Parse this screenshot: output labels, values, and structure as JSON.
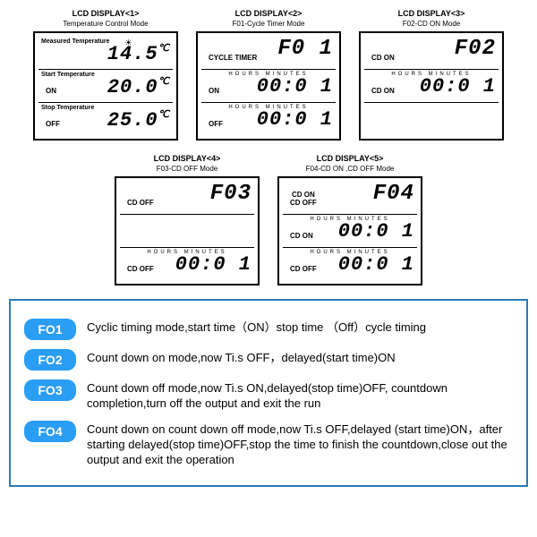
{
  "displays": [
    {
      "title": "LCD DISPLAY<1>",
      "sub": "Temperature Control Mode",
      "sections": [
        {
          "label": "Measured Temperature",
          "sun": true,
          "value": "14.5",
          "unit": "℃"
        },
        {
          "label": "Start Temperature",
          "state": "ON",
          "value": "20.0",
          "unit": "℃"
        },
        {
          "label": "Stop Temperature",
          "state": "OFF",
          "value": "25.0",
          "unit": "℃"
        }
      ]
    },
    {
      "title": "LCD DISPLAY<2>",
      "sub": "F01-Cycle Timer Mode",
      "sections": [
        {
          "label": "",
          "state": "CYCLE TIMER",
          "value": "F0 1",
          "big": true
        },
        {
          "hm": "HOURS   MINUTES",
          "state": "ON",
          "value": "00:0 1"
        },
        {
          "hm": "HOURS   MINUTES",
          "state": "OFF",
          "value": "00:0 1"
        }
      ]
    },
    {
      "title": "LCD DISPLAY<3>",
      "sub": "F02-CD ON Mode",
      "sections": [
        {
          "label": "",
          "state": "CD ON",
          "value": "F02",
          "big": true
        },
        {
          "hm": "HOURS   MINUTES",
          "state": "CD ON",
          "value": "00:0 1"
        },
        {
          "label": "",
          "value": ""
        }
      ]
    },
    {
      "title": "LCD DISPLAY<4>",
      "sub": "F03-CD OFF Mode",
      "sections": [
        {
          "label": "",
          "state": "CD OFF",
          "value": "F03",
          "big": true
        },
        {
          "label": "",
          "value": ""
        },
        {
          "hm": "HOURS   MINUTES",
          "state": "CD OFF",
          "value": "00:0 1"
        }
      ]
    },
    {
      "title": "LCD DISPLAY<5>",
      "sub": "F04-CD ON ,CD OFF Mode",
      "sections": [
        {
          "label": "",
          "state": "CD ON\nCD OFF",
          "value": "F04",
          "big": true
        },
        {
          "hm": "HOURS   MINUTES",
          "state": "CD ON",
          "value": "00:0 1"
        },
        {
          "hm": "HOURS   MINUTES",
          "state": "CD OFF",
          "value": "00:0 1"
        }
      ]
    }
  ],
  "legend": [
    {
      "badge": "FO1",
      "text": "Cyclic timing mode,start time（ON）stop time （Off）cycle timing"
    },
    {
      "badge": "FO2",
      "text": "Count down on mode,now Ti.s OFF，delayed(start time)ON"
    },
    {
      "badge": "FO3",
      "text": "Count down off mode,now Ti.s ON,delayed(stop time)OFF, countdown completion,turn off the output and exit the run"
    },
    {
      "badge": "FO4",
      "text": "Count down on count down off mode,now Ti.s OFF,delayed (start time)ON，after starting delayed(stop time)OFF,stop the time to finish the countdown,close out the output and exit the operation"
    }
  ],
  "colors": {
    "border": "#2a7ab8",
    "badge": "#2a9df4"
  }
}
